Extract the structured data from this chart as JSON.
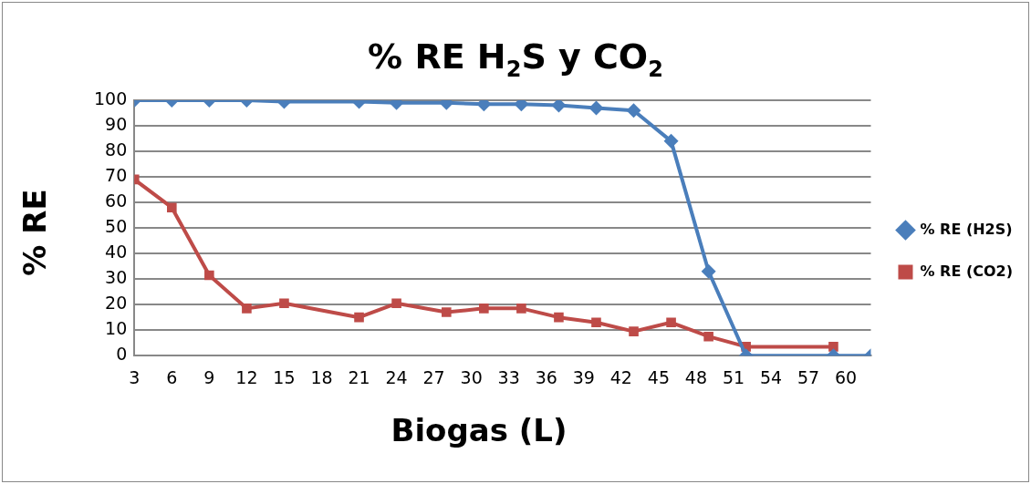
{
  "chart_data": {
    "type": "line",
    "title": "% RE H$_{2}$S y CO$_{2}$",
    "xlabel": "Biogas (L)",
    "ylabel": "% RE",
    "xlim": [
      3,
      62
    ],
    "xticks": [
      3,
      6,
      9,
      12,
      15,
      18,
      21,
      24,
      27,
      30,
      33,
      36,
      39,
      42,
      45,
      48,
      51,
      54,
      57,
      60
    ],
    "ylim": [
      0,
      100
    ],
    "yticks": [
      0,
      10,
      20,
      30,
      40,
      50,
      60,
      70,
      80,
      90,
      100
    ],
    "grid": "y",
    "legend": "right",
    "series": [
      {
        "name": "% RE (H2S)",
        "color": "#4a7ebb",
        "marker": "diamond",
        "x": [
          3,
          6,
          9,
          12,
          15,
          21,
          24,
          28,
          31,
          34,
          37,
          40,
          43,
          46,
          49,
          52,
          59,
          62
        ],
        "values": [
          100,
          100,
          100,
          100,
          99.5,
          99.5,
          99,
          99,
          98.5,
          98.5,
          98,
          97,
          96,
          84,
          33,
          0,
          0,
          0
        ]
      },
      {
        "name": "% RE (CO2)",
        "color": "#be4b48",
        "marker": "square",
        "x": [
          3,
          6,
          9,
          12,
          15,
          21,
          24,
          28,
          31,
          34,
          37,
          40,
          43,
          46,
          49,
          52,
          59
        ],
        "values": [
          69,
          58,
          31.5,
          18.5,
          20.5,
          15,
          20.5,
          17,
          18.5,
          18.5,
          15,
          13,
          9.5,
          13,
          7.5,
          3.5,
          3.5
        ]
      }
    ]
  }
}
